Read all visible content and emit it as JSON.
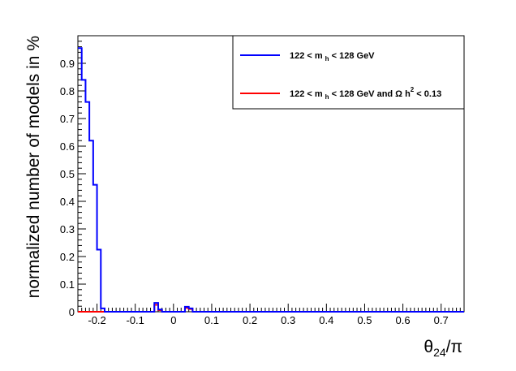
{
  "chart_data": {
    "type": "histogram",
    "title": "",
    "xlabel_main": "θ",
    "xlabel_sub": "24",
    "xlabel_tail": "/π",
    "ylabel": "normalized number of models in %",
    "xlim": [
      -0.25,
      0.76
    ],
    "ylim": [
      0,
      1.0
    ],
    "bin_width": 0.01,
    "grid": false,
    "legend_placement": "top-right",
    "x_ticks": [
      -0.2,
      -0.1,
      0,
      0.1,
      0.2,
      0.3,
      0.4,
      0.5,
      0.6,
      0.7
    ],
    "x_tick_labels": [
      "-0.2",
      "-0.1",
      "0",
      "0.1",
      "0.2",
      "0.3",
      "0.4",
      "0.5",
      "0.6",
      "0.7"
    ],
    "y_ticks": [
      0,
      0.1,
      0.2,
      0.3,
      0.4,
      0.5,
      0.6,
      0.7,
      0.8,
      0.9
    ],
    "y_tick_labels": [
      "0",
      "0.1",
      "0.2",
      "0.3",
      "0.4",
      "0.5",
      "0.6",
      "0.7",
      "0.8",
      "0.9"
    ],
    "series": [
      {
        "legend_parts": [
          "122 < m",
          "h",
          " < 128 GeV"
        ],
        "color": "#0000ff",
        "bins": [
          {
            "x": -0.25,
            "y": 0.955
          },
          {
            "x": -0.24,
            "y": 0.84
          },
          {
            "x": -0.23,
            "y": 0.76
          },
          {
            "x": -0.22,
            "y": 0.62
          },
          {
            "x": -0.21,
            "y": 0.46
          },
          {
            "x": -0.2,
            "y": 0.225
          },
          {
            "x": -0.19,
            "y": 0.012
          },
          {
            "x": -0.05,
            "y": 0.032
          },
          {
            "x": -0.04,
            "y": 0.008
          },
          {
            "x": 0.03,
            "y": 0.018
          },
          {
            "x": 0.04,
            "y": 0.012
          }
        ]
      },
      {
        "legend_parts": [
          "122 < m",
          "h",
          " < 128 GeV and   Ω h",
          "2",
          " < 0.13"
        ],
        "color": "#ff0000",
        "bins": [
          {
            "x": -0.05,
            "y": 0.025
          },
          {
            "x": -0.04,
            "y": 0.006
          },
          {
            "x": 0.03,
            "y": 0.014
          },
          {
            "x": 0.04,
            "y": 0.01
          }
        ]
      }
    ]
  }
}
